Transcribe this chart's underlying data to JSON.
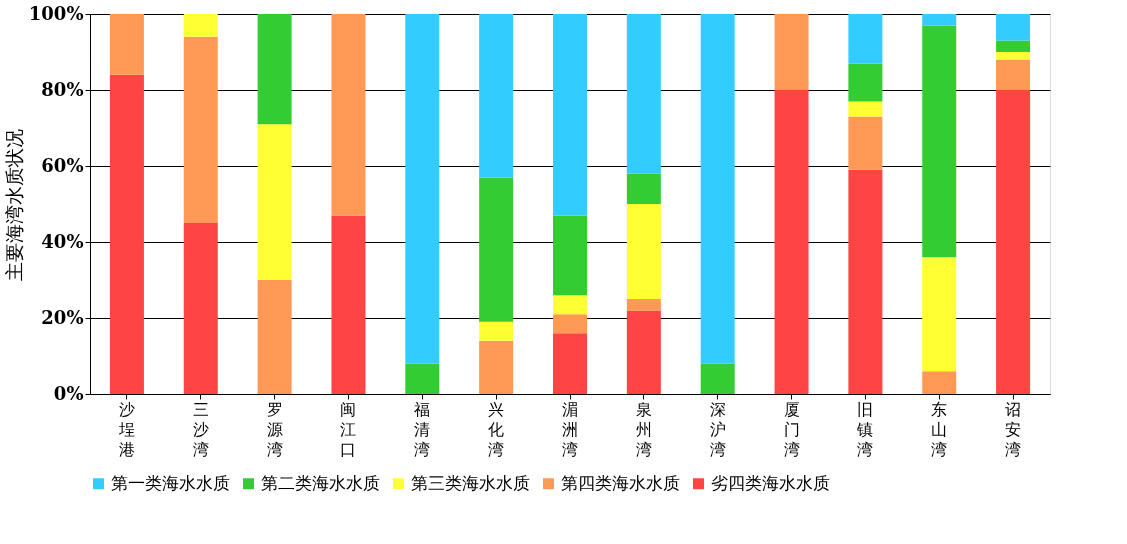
{
  "chart_data": {
    "type": "bar",
    "stacked": true,
    "ylabel": "主要海湾水质状况",
    "categories": [
      "沙埕港",
      "三沙湾",
      "罗源湾",
      "闽江口",
      "福清湾",
      "兴化湾",
      "湄洲湾",
      "泉州湾",
      "深沪湾",
      "厦门湾",
      "旧镇湾",
      "东山湾",
      "诏安湾"
    ],
    "series": [
      {
        "name": "劣四类海水水质",
        "color": "#ff4444",
        "values": [
          84,
          45,
          0,
          47,
          0,
          0,
          16,
          22,
          0,
          80,
          59,
          0,
          80
        ]
      },
      {
        "name": "第四类海水水质",
        "color": "#ff9955",
        "values": [
          16,
          49,
          30,
          53,
          0,
          14,
          5,
          3,
          0,
          20,
          14,
          6,
          8
        ]
      },
      {
        "name": "第三类海水水质",
        "color": "#ffff33",
        "values": [
          0,
          6,
          41,
          0,
          0,
          5,
          5,
          25,
          0,
          0,
          4,
          30,
          2
        ]
      },
      {
        "name": "第二类海水水质",
        "color": "#33cc33",
        "values": [
          0,
          0,
          29,
          0,
          8,
          38,
          21,
          8,
          8,
          0,
          10,
          61,
          3
        ]
      },
      {
        "name": "第一类海水水质",
        "color": "#33ccff",
        "values": [
          0,
          0,
          0,
          0,
          92,
          43,
          53,
          42,
          92,
          0,
          13,
          3,
          7
        ]
      }
    ],
    "ylim": [
      0,
      100
    ],
    "yticks": [
      {
        "value": 0,
        "label": "0%"
      },
      {
        "value": 20,
        "label": "20%"
      },
      {
        "value": 40,
        "label": "40%"
      },
      {
        "value": 60,
        "label": "60%"
      },
      {
        "value": 80,
        "label": "80%"
      },
      {
        "value": 100,
        "label": "100%"
      }
    ],
    "grid": "y",
    "legend": "bottom"
  }
}
